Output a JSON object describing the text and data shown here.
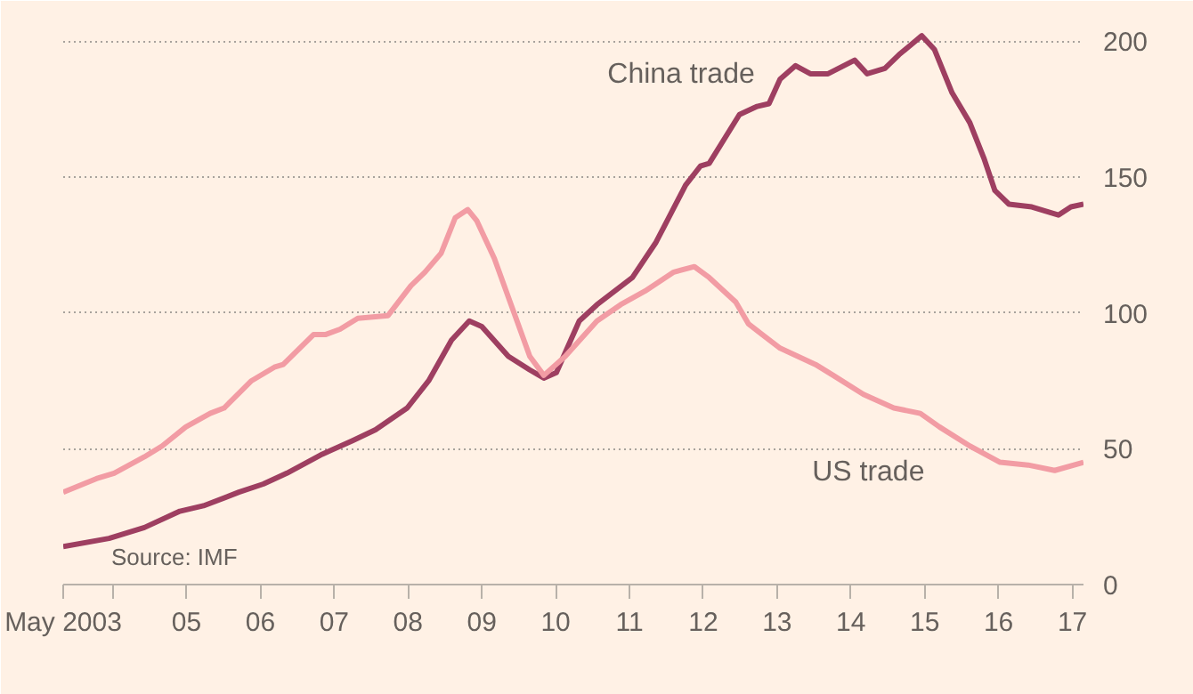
{
  "chart_data": {
    "type": "line",
    "xlim": [
      2003.33,
      2017.15
    ],
    "xticks": [
      {
        "value": 2003.33,
        "label": "May 2003"
      },
      {
        "value": 2004,
        "label": null
      },
      {
        "value": 2005,
        "label": "05"
      },
      {
        "value": 2006,
        "label": "06"
      },
      {
        "value": 2007,
        "label": "07"
      },
      {
        "value": 2008,
        "label": "08"
      },
      {
        "value": 2009,
        "label": "09"
      },
      {
        "value": 2010,
        "label": "10"
      },
      {
        "value": 2011,
        "label": "11"
      },
      {
        "value": 2012,
        "label": "12"
      },
      {
        "value": 2013,
        "label": "13"
      },
      {
        "value": 2014,
        "label": "14"
      },
      {
        "value": 2015,
        "label": "15"
      },
      {
        "value": 2016,
        "label": "16"
      },
      {
        "value": 2017,
        "label": "17"
      }
    ],
    "ylim": [
      0,
      205
    ],
    "yticks": [
      0,
      50,
      100,
      150,
      200
    ],
    "grid": "y",
    "legend": false,
    "line_style": "solid",
    "series": [
      {
        "name": "China trade",
        "color": "#9e3f61",
        "x": [
          2003.33,
          2003.95,
          2004.43,
          2004.91,
          2005.23,
          2005.71,
          2006.04,
          2006.36,
          2006.84,
          2007.25,
          2007.56,
          2007.99,
          2008.28,
          2008.59,
          2008.83,
          2009.0,
          2009.36,
          2009.65,
          2009.84,
          2010.01,
          2010.32,
          2010.56,
          2011.04,
          2011.36,
          2011.76,
          2011.96,
          2012.08,
          2012.49,
          2012.73,
          2012.89,
          2013.04,
          2013.25,
          2013.45,
          2013.69,
          2014.05,
          2014.22,
          2014.46,
          2014.65,
          2014.96,
          2015.13,
          2015.37,
          2015.61,
          2015.8,
          2015.95,
          2016.14,
          2016.45,
          2016.81,
          2016.98,
          2017.15
        ],
        "values": [
          14,
          17,
          21,
          27,
          29,
          34,
          37,
          41,
          48,
          53,
          57,
          65,
          75,
          90,
          97,
          95,
          84,
          79,
          76,
          78,
          97,
          103,
          113,
          126,
          147,
          154,
          155,
          173,
          176,
          177,
          186,
          191,
          188,
          188,
          193,
          188,
          190,
          195,
          202,
          197,
          181,
          170,
          157,
          145,
          140,
          139,
          136,
          139,
          140
        ]
      },
      {
        "name": "US trade",
        "color": "#f29ca4",
        "x": [
          2003.33,
          2003.78,
          2004.02,
          2004.43,
          2004.67,
          2004.99,
          2005.32,
          2005.51,
          2005.88,
          2006.19,
          2006.31,
          2006.72,
          2006.88,
          2007.08,
          2007.32,
          2007.73,
          2008.04,
          2008.23,
          2008.45,
          2008.64,
          2008.81,
          2008.93,
          2009.17,
          2009.41,
          2009.65,
          2009.84,
          2010.13,
          2010.56,
          2010.88,
          2011.21,
          2011.6,
          2011.88,
          2012.08,
          2012.44,
          2012.61,
          2012.8,
          2013.04,
          2013.28,
          2013.52,
          2013.76,
          2014.17,
          2014.58,
          2014.94,
          2015.2,
          2015.61,
          2016.02,
          2016.4,
          2016.76,
          2017.15
        ],
        "values": [
          34,
          39,
          41,
          47,
          51,
          58,
          63,
          65,
          75,
          80,
          81,
          92,
          92,
          94,
          98,
          99,
          110,
          115,
          122,
          135,
          138,
          134,
          120,
          102,
          84,
          77,
          84,
          97,
          103,
          108,
          115,
          117,
          113,
          104,
          96,
          92,
          87,
          84,
          81,
          77,
          70,
          65,
          63,
          58,
          51,
          45,
          44,
          42,
          45
        ]
      }
    ],
    "annotations": [
      "Source: IMF"
    ]
  }
}
